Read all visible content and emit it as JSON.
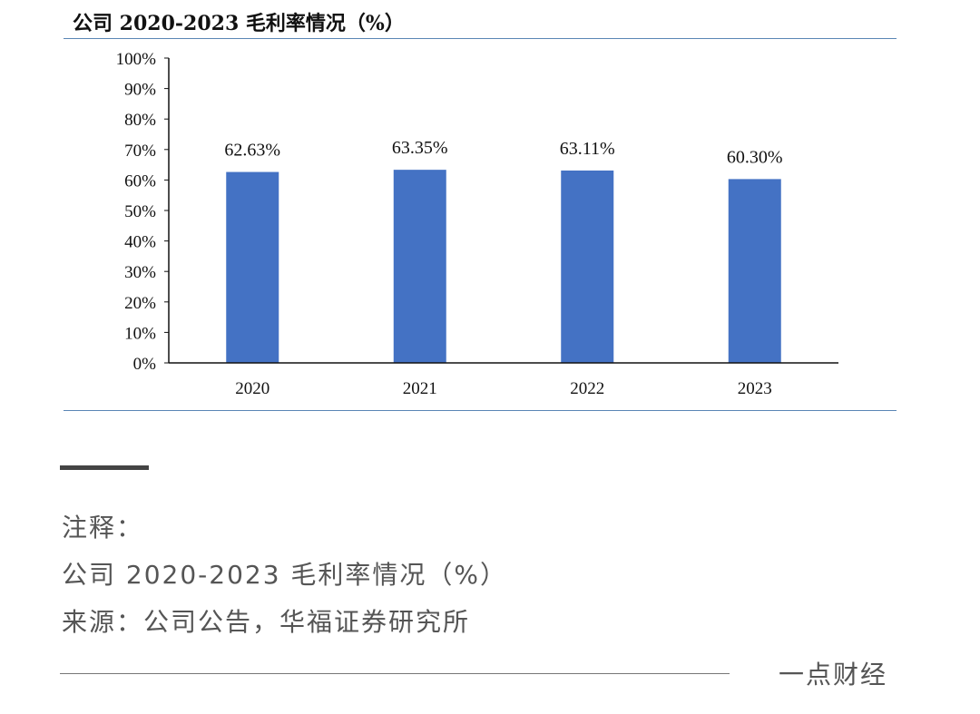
{
  "chart_data": {
    "type": "bar",
    "title": "公司 2020-2023 毛利率情况（%）",
    "categories": [
      "2020",
      "2021",
      "2022",
      "2023"
    ],
    "values": [
      62.63,
      63.35,
      63.11,
      60.3
    ],
    "data_labels": [
      "62.63%",
      "63.35%",
      "63.11%",
      "60.30%"
    ],
    "y_tick_labels": [
      "0%",
      "10%",
      "20%",
      "30%",
      "40%",
      "50%",
      "60%",
      "70%",
      "80%",
      "90%",
      "100%"
    ],
    "y_ticks": [
      0,
      10,
      20,
      30,
      40,
      50,
      60,
      70,
      80,
      90,
      100
    ],
    "ylim": [
      0,
      100
    ],
    "xlabel": "",
    "ylabel": "",
    "grid": false,
    "legend": "none",
    "bar_color": "#4472c4"
  },
  "notes": {
    "heading": "注释：",
    "caption": "公司 2020-2023 毛利率情况（%）",
    "source": "来源：公司公告，华福证券研究所"
  },
  "footer": {
    "brand": "一点财经"
  },
  "colors": {
    "rule": "#5a86b5",
    "text_gray": "#555555"
  }
}
